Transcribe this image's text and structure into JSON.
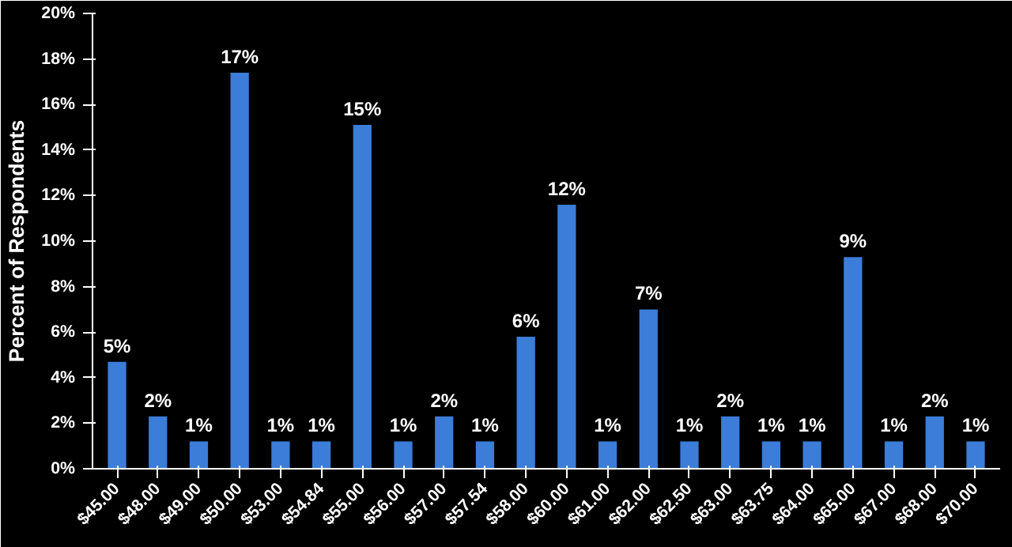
{
  "chart_data": {
    "type": "bar",
    "ylabel": "Percent of Respondents",
    "categories": [
      "$45.00",
      "$48.00",
      "$49.00",
      "$50.00",
      "$53.00",
      "$54.84",
      "$55.00",
      "$56.00",
      "$57.00",
      "$57.54",
      "$58.00",
      "$60.00",
      "$61.00",
      "$62.00",
      "$62.50",
      "$63.00",
      "$63.75",
      "$64.00",
      "$65.00",
      "$67.00",
      "$68.00",
      "$70.00"
    ],
    "values": [
      4.7,
      2.3,
      1.2,
      17.4,
      1.2,
      1.2,
      15.1,
      1.2,
      2.3,
      1.2,
      5.8,
      11.6,
      1.2,
      7.0,
      1.2,
      2.3,
      1.2,
      1.2,
      9.3,
      1.2,
      2.3,
      1.2
    ],
    "value_labels": [
      "5%",
      "2%",
      "1%",
      "17%",
      "1%",
      "1%",
      "15%",
      "1%",
      "2%",
      "1%",
      "6%",
      "12%",
      "1%",
      "7%",
      "1%",
      "2%",
      "1%",
      "1%",
      "9%",
      "1%",
      "2%",
      "1%"
    ],
    "color": "#3b7dd8",
    "ylim": [
      0,
      20
    ],
    "yticks": [
      {
        "value": 0,
        "label": "0%"
      },
      {
        "value": 2,
        "label": "2%"
      },
      {
        "value": 4,
        "label": "4%"
      },
      {
        "value": 6,
        "label": "6%"
      },
      {
        "value": 8,
        "label": "8%"
      },
      {
        "value": 10,
        "label": "10%"
      },
      {
        "value": 12,
        "label": "12%"
      },
      {
        "value": 14,
        "label": "14%"
      },
      {
        "value": 16,
        "label": "16%"
      },
      {
        "value": 18,
        "label": "18%"
      },
      {
        "value": 20,
        "label": "20%"
      }
    ],
    "grid": false
  }
}
